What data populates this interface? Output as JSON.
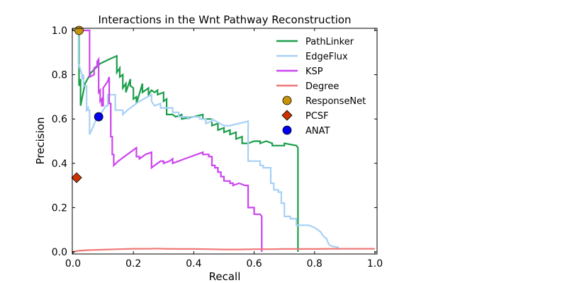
{
  "chart_data": {
    "type": "line",
    "title": "Interactions in the Wnt Pathway Reconstruction",
    "xlabel": "Recall",
    "ylabel": "Precision",
    "xlim": [
      0,
      1.0
    ],
    "ylim": [
      0,
      1.0
    ],
    "xticks": [
      "0.0",
      "0.2",
      "0.4",
      "0.6",
      "0.8",
      "1.0"
    ],
    "yticks": [
      "0.0",
      "0.2",
      "0.4",
      "0.6",
      "0.8",
      "1.0"
    ],
    "grid": false,
    "legend_position": "top-right",
    "series": [
      {
        "name": "PathLinker",
        "color": "#1a9e4a",
        "points": [
          [
            0.02,
            1.0
          ],
          [
            0.02,
            0.75
          ],
          [
            0.025,
            0.78
          ],
          [
            0.025,
            0.66
          ],
          [
            0.04,
            0.76
          ],
          [
            0.06,
            0.81
          ],
          [
            0.09,
            0.85
          ],
          [
            0.12,
            0.87
          ],
          [
            0.145,
            0.885
          ],
          [
            0.145,
            0.81
          ],
          [
            0.155,
            0.83
          ],
          [
            0.155,
            0.79
          ],
          [
            0.165,
            0.8
          ],
          [
            0.165,
            0.74
          ],
          [
            0.175,
            0.76
          ],
          [
            0.175,
            0.72
          ],
          [
            0.19,
            0.78
          ],
          [
            0.19,
            0.75
          ],
          [
            0.2,
            0.74
          ],
          [
            0.2,
            0.69
          ],
          [
            0.21,
            0.7
          ],
          [
            0.21,
            0.67
          ],
          [
            0.23,
            0.76
          ],
          [
            0.23,
            0.72
          ],
          [
            0.25,
            0.74
          ],
          [
            0.25,
            0.71
          ],
          [
            0.26,
            0.73
          ],
          [
            0.27,
            0.72
          ],
          [
            0.28,
            0.73
          ],
          [
            0.28,
            0.71
          ],
          [
            0.3,
            0.72
          ],
          [
            0.3,
            0.68
          ],
          [
            0.31,
            0.69
          ],
          [
            0.31,
            0.62
          ],
          [
            0.33,
            0.62
          ],
          [
            0.34,
            0.61
          ],
          [
            0.36,
            0.62
          ],
          [
            0.36,
            0.6
          ],
          [
            0.4,
            0.61
          ],
          [
            0.43,
            0.62
          ],
          [
            0.43,
            0.6
          ],
          [
            0.46,
            0.6
          ],
          [
            0.46,
            0.57
          ],
          [
            0.48,
            0.58
          ],
          [
            0.48,
            0.55
          ],
          [
            0.5,
            0.56
          ],
          [
            0.5,
            0.54
          ],
          [
            0.52,
            0.55
          ],
          [
            0.52,
            0.53
          ],
          [
            0.54,
            0.54
          ],
          [
            0.54,
            0.51
          ],
          [
            0.56,
            0.52
          ],
          [
            0.56,
            0.49
          ],
          [
            0.58,
            0.49
          ],
          [
            0.6,
            0.5
          ],
          [
            0.62,
            0.5
          ],
          [
            0.62,
            0.49
          ],
          [
            0.64,
            0.5
          ],
          [
            0.66,
            0.49
          ],
          [
            0.66,
            0.48
          ],
          [
            0.7,
            0.48
          ],
          [
            0.7,
            0.49
          ],
          [
            0.74,
            0.48
          ],
          [
            0.745,
            0.47
          ],
          [
            0.745,
            0.0
          ]
        ]
      },
      {
        "name": "EdgeFlux",
        "color": "#a8d0f5",
        "points": [
          [
            0.018,
            1.0
          ],
          [
            0.018,
            0.85
          ],
          [
            0.03,
            0.8
          ],
          [
            0.03,
            0.78
          ],
          [
            0.035,
            0.8
          ],
          [
            0.035,
            0.75
          ],
          [
            0.045,
            0.75
          ],
          [
            0.045,
            0.64
          ],
          [
            0.05,
            0.65
          ],
          [
            0.05,
            0.64
          ],
          [
            0.055,
            0.64
          ],
          [
            0.055,
            0.53
          ],
          [
            0.065,
            0.56
          ],
          [
            0.08,
            0.61
          ],
          [
            0.09,
            0.61
          ],
          [
            0.09,
            0.62
          ],
          [
            0.11,
            0.66
          ],
          [
            0.115,
            0.66
          ],
          [
            0.115,
            0.71
          ],
          [
            0.14,
            0.71
          ],
          [
            0.14,
            0.64
          ],
          [
            0.165,
            0.64
          ],
          [
            0.165,
            0.62
          ],
          [
            0.18,
            0.64
          ],
          [
            0.2,
            0.66
          ],
          [
            0.22,
            0.68
          ],
          [
            0.26,
            0.71
          ],
          [
            0.26,
            0.68
          ],
          [
            0.27,
            0.66
          ],
          [
            0.29,
            0.67
          ],
          [
            0.29,
            0.65
          ],
          [
            0.33,
            0.65
          ],
          [
            0.33,
            0.63
          ],
          [
            0.35,
            0.63
          ],
          [
            0.35,
            0.61
          ],
          [
            0.38,
            0.61
          ],
          [
            0.38,
            0.6
          ],
          [
            0.4,
            0.61
          ],
          [
            0.42,
            0.61
          ],
          [
            0.42,
            0.6
          ],
          [
            0.44,
            0.6
          ],
          [
            0.44,
            0.58
          ],
          [
            0.46,
            0.59
          ],
          [
            0.46,
            0.6
          ],
          [
            0.5,
            0.57
          ],
          [
            0.52,
            0.57
          ],
          [
            0.55,
            0.58
          ],
          [
            0.58,
            0.59
          ],
          [
            0.58,
            0.41
          ],
          [
            0.62,
            0.41
          ],
          [
            0.62,
            0.39
          ],
          [
            0.63,
            0.39
          ],
          [
            0.63,
            0.38
          ],
          [
            0.655,
            0.38
          ],
          [
            0.655,
            0.31
          ],
          [
            0.665,
            0.31
          ],
          [
            0.665,
            0.28
          ],
          [
            0.68,
            0.28
          ],
          [
            0.68,
            0.27
          ],
          [
            0.69,
            0.27
          ],
          [
            0.69,
            0.22
          ],
          [
            0.7,
            0.22
          ],
          [
            0.7,
            0.16
          ],
          [
            0.72,
            0.16
          ],
          [
            0.72,
            0.15
          ],
          [
            0.74,
            0.15
          ],
          [
            0.74,
            0.12
          ],
          [
            0.76,
            0.12
          ],
          [
            0.78,
            0.12
          ],
          [
            0.8,
            0.11
          ],
          [
            0.81,
            0.1
          ],
          [
            0.82,
            0.09
          ],
          [
            0.83,
            0.07
          ],
          [
            0.84,
            0.06
          ],
          [
            0.845,
            0.04
          ],
          [
            0.85,
            0.03
          ],
          [
            0.86,
            0.025
          ],
          [
            0.88,
            0.02
          ]
        ]
      },
      {
        "name": "KSP",
        "color": "#cc44ee",
        "points": [
          [
            0.025,
            1.0
          ],
          [
            0.055,
            1.0
          ],
          [
            0.055,
            0.79
          ],
          [
            0.07,
            0.8
          ],
          [
            0.07,
            0.83
          ],
          [
            0.08,
            0.84
          ],
          [
            0.08,
            0.86
          ],
          [
            0.085,
            0.87
          ],
          [
            0.085,
            0.72
          ],
          [
            0.09,
            0.73
          ],
          [
            0.09,
            0.68
          ],
          [
            0.095,
            0.69
          ],
          [
            0.095,
            0.66
          ],
          [
            0.1,
            0.66
          ],
          [
            0.1,
            0.74
          ],
          [
            0.11,
            0.76
          ],
          [
            0.115,
            0.77
          ],
          [
            0.12,
            0.79
          ],
          [
            0.12,
            0.67
          ],
          [
            0.125,
            0.67
          ],
          [
            0.125,
            0.52
          ],
          [
            0.13,
            0.52
          ],
          [
            0.13,
            0.44
          ],
          [
            0.135,
            0.44
          ],
          [
            0.135,
            0.39
          ],
          [
            0.15,
            0.41
          ],
          [
            0.17,
            0.43
          ],
          [
            0.19,
            0.45
          ],
          [
            0.21,
            0.47
          ],
          [
            0.21,
            0.43
          ],
          [
            0.22,
            0.43
          ],
          [
            0.22,
            0.42
          ],
          [
            0.24,
            0.44
          ],
          [
            0.26,
            0.45
          ],
          [
            0.26,
            0.38
          ],
          [
            0.27,
            0.39
          ],
          [
            0.28,
            0.4
          ],
          [
            0.29,
            0.41
          ],
          [
            0.3,
            0.41
          ],
          [
            0.3,
            0.4
          ],
          [
            0.32,
            0.41
          ],
          [
            0.33,
            0.42
          ],
          [
            0.33,
            0.4
          ],
          [
            0.35,
            0.41
          ],
          [
            0.37,
            0.42
          ],
          [
            0.39,
            0.43
          ],
          [
            0.41,
            0.44
          ],
          [
            0.43,
            0.45
          ],
          [
            0.43,
            0.44
          ],
          [
            0.45,
            0.44
          ],
          [
            0.45,
            0.43
          ],
          [
            0.46,
            0.43
          ],
          [
            0.46,
            0.39
          ],
          [
            0.47,
            0.39
          ],
          [
            0.47,
            0.38
          ],
          [
            0.48,
            0.38
          ],
          [
            0.48,
            0.36
          ],
          [
            0.49,
            0.36
          ],
          [
            0.49,
            0.34
          ],
          [
            0.5,
            0.34
          ],
          [
            0.5,
            0.32
          ],
          [
            0.52,
            0.32
          ],
          [
            0.52,
            0.31
          ],
          [
            0.53,
            0.31
          ],
          [
            0.53,
            0.3
          ],
          [
            0.55,
            0.31
          ],
          [
            0.57,
            0.3
          ],
          [
            0.58,
            0.3
          ],
          [
            0.58,
            0.2
          ],
          [
            0.6,
            0.2
          ],
          [
            0.6,
            0.17
          ],
          [
            0.62,
            0.17
          ],
          [
            0.625,
            0.16
          ],
          [
            0.625,
            0.0
          ]
        ]
      },
      {
        "name": "Degree",
        "color": "#f07878",
        "points": [
          [
            0.0,
            0.0
          ],
          [
            0.02,
            0.005
          ],
          [
            0.05,
            0.008
          ],
          [
            0.1,
            0.01
          ],
          [
            0.15,
            0.012
          ],
          [
            0.2,
            0.014
          ],
          [
            0.25,
            0.014
          ],
          [
            0.28,
            0.015
          ],
          [
            0.3,
            0.014
          ],
          [
            0.35,
            0.013
          ],
          [
            0.4,
            0.013
          ],
          [
            0.45,
            0.012
          ],
          [
            0.5,
            0.011
          ],
          [
            0.55,
            0.011
          ],
          [
            0.6,
            0.012
          ],
          [
            0.65,
            0.012
          ],
          [
            0.7,
            0.013
          ],
          [
            0.75,
            0.013
          ],
          [
            0.8,
            0.013
          ],
          [
            0.85,
            0.014
          ],
          [
            0.9,
            0.014
          ],
          [
            0.95,
            0.014
          ],
          [
            1.0,
            0.014
          ]
        ]
      }
    ],
    "markers": [
      {
        "name": "ResponseNet",
        "shape": "circle",
        "color": "#c8940a",
        "x": 0.02,
        "y": 1.0
      },
      {
        "name": "PCSF",
        "shape": "diamond",
        "color": "#cc3300",
        "x": 0.012,
        "y": 0.335
      },
      {
        "name": "ANAT",
        "shape": "circle",
        "color": "#0000ee",
        "x": 0.085,
        "y": 0.61
      }
    ]
  }
}
